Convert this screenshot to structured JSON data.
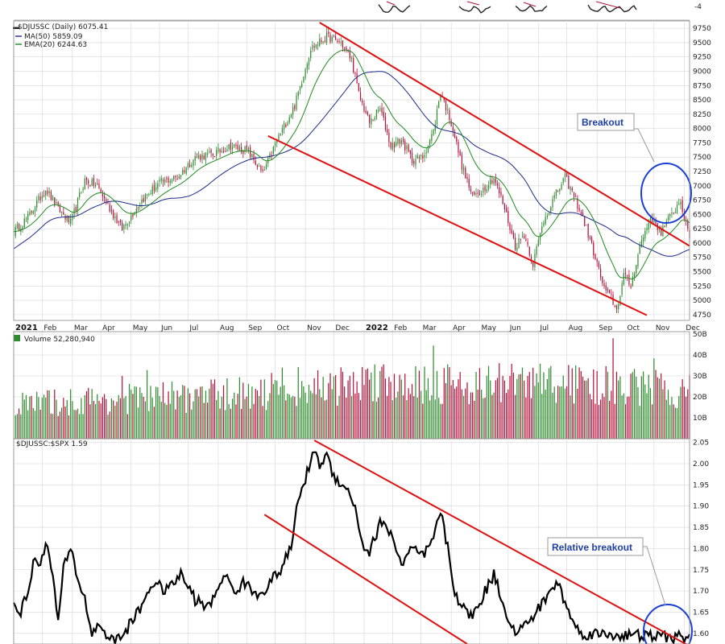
{
  "colors": {
    "up": "#2e8b2e",
    "down": "#b3123a",
    "ma50": "#1c2a8a",
    "ema20": "#1f8a1f",
    "channel": "#e01010",
    "circle": "#1a3fd6",
    "annotation_text": "#1f3fa8"
  },
  "chart_data": [
    {
      "type": "candlestick",
      "title": "$DJUSSC (Daily) 6075.41",
      "legend": [
        {
          "name": "MA(50) 5859.09",
          "color": "#1c2a8a"
        },
        {
          "name": "EMA(20) 6244.63",
          "color": "#1f8a1f"
        }
      ],
      "ylim": [
        4650,
        9850
      ],
      "y_ticks": [
        4750,
        5000,
        5250,
        5500,
        5750,
        6000,
        6250,
        6500,
        6750,
        7000,
        7250,
        7500,
        7750,
        8000,
        8250,
        8500,
        8750,
        9000,
        9250,
        9500,
        9750
      ],
      "x_labels": [
        "2021",
        "Feb",
        "Mar",
        "Apr",
        "May",
        "Jun",
        "Jul",
        "Aug",
        "Sep",
        "Oct",
        "Nov",
        "Dec",
        "2022",
        "Feb",
        "Mar",
        "Apr",
        "May",
        "Jun",
        "Jul",
        "Aug",
        "Sep",
        "Oct",
        "Nov",
        "Dec"
      ],
      "bold_labels": [
        "2021",
        "2022"
      ],
      "close_anchors": [
        [
          0,
          6200
        ],
        [
          8,
          6450
        ],
        [
          18,
          6950
        ],
        [
          25,
          6600
        ],
        [
          32,
          6350
        ],
        [
          40,
          7100
        ],
        [
          47,
          7000
        ],
        [
          55,
          6550
        ],
        [
          61,
          6250
        ],
        [
          72,
          6750
        ],
        [
          82,
          7050
        ],
        [
          92,
          7150
        ],
        [
          102,
          7500
        ],
        [
          112,
          7550
        ],
        [
          122,
          7700
        ],
        [
          132,
          7600
        ],
        [
          140,
          7200
        ],
        [
          148,
          7800
        ],
        [
          158,
          8400
        ],
        [
          167,
          9400
        ],
        [
          176,
          9600
        ],
        [
          184,
          9500
        ],
        [
          190,
          9200
        ],
        [
          194,
          8600
        ],
        [
          200,
          8100
        ],
        [
          206,
          8350
        ],
        [
          212,
          7700
        ],
        [
          218,
          7800
        ],
        [
          224,
          7450
        ],
        [
          230,
          7500
        ],
        [
          236,
          7950
        ],
        [
          240,
          8650
        ],
        [
          246,
          8100
        ],
        [
          252,
          7350
        ],
        [
          258,
          6800
        ],
        [
          264,
          6950
        ],
        [
          270,
          7150
        ],
        [
          276,
          6600
        ],
        [
          282,
          5950
        ],
        [
          287,
          6150
        ],
        [
          292,
          5650
        ],
        [
          298,
          6400
        ],
        [
          304,
          6800
        ],
        [
          310,
          7150
        ],
        [
          316,
          6750
        ],
        [
          321,
          6350
        ],
        [
          326,
          5850
        ],
        [
          332,
          5200
        ],
        [
          336,
          5050
        ],
        [
          339,
          4820
        ],
        [
          343,
          5450
        ],
        [
          347,
          5250
        ],
        [
          352,
          5950
        ],
        [
          358,
          6450
        ],
        [
          364,
          6200
        ],
        [
          370,
          6500
        ],
        [
          375,
          6750
        ],
        [
          378,
          6300
        ],
        [
          380,
          6100
        ]
      ],
      "annotation": {
        "text": "Breakout"
      }
    },
    {
      "type": "bar",
      "title": "Volume 52,280,940",
      "ylim": [
        0,
        50
      ],
      "y_ticks": [
        10,
        20,
        30,
        40,
        50
      ],
      "y_tick_labels": [
        "10B",
        "20B",
        "30B",
        "40B",
        "50B"
      ],
      "volume_anchors": [
        [
          0,
          18
        ],
        [
          60,
          21
        ],
        [
          110,
          23
        ],
        [
          140,
          24
        ],
        [
          150,
          28
        ],
        [
          180,
          27
        ],
        [
          200,
          31
        ],
        [
          260,
          29
        ],
        [
          300,
          30
        ],
        [
          330,
          28
        ],
        [
          352,
          27
        ],
        [
          380,
          25
        ]
      ]
    },
    {
      "type": "line",
      "title": "$DJUSSC:$SPX 1.59",
      "ylim": [
        1.575,
        2.055
      ],
      "y_ticks": [
        1.6,
        1.65,
        1.7,
        1.75,
        1.8,
        1.85,
        1.9,
        1.95,
        2.0,
        2.05
      ],
      "y_tick_labels": [
        "1.60",
        "1.65",
        "1.70",
        "1.75",
        "1.80",
        "1.85",
        "1.90",
        "1.95",
        "2.00",
        "2.05"
      ],
      "value_anchors": [
        [
          0,
          1.67
        ],
        [
          4,
          1.65
        ],
        [
          8,
          1.7
        ],
        [
          12,
          1.78
        ],
        [
          15,
          1.76
        ],
        [
          18,
          1.82
        ],
        [
          22,
          1.73
        ],
        [
          25,
          1.63
        ],
        [
          28,
          1.75
        ],
        [
          32,
          1.8
        ],
        [
          36,
          1.73
        ],
        [
          40,
          1.68
        ],
        [
          44,
          1.6
        ],
        [
          48,
          1.62
        ],
        [
          56,
          1.58
        ],
        [
          62,
          1.6
        ],
        [
          70,
          1.65
        ],
        [
          78,
          1.72
        ],
        [
          86,
          1.7
        ],
        [
          94,
          1.74
        ],
        [
          102,
          1.68
        ],
        [
          110,
          1.66
        ],
        [
          118,
          1.74
        ],
        [
          124,
          1.7
        ],
        [
          130,
          1.72
        ],
        [
          136,
          1.69
        ],
        [
          140,
          1.7
        ],
        [
          150,
          1.75
        ],
        [
          156,
          1.8
        ],
        [
          160,
          1.92
        ],
        [
          164,
          1.96
        ],
        [
          168,
          2.03
        ],
        [
          172,
          2.0
        ],
        [
          176,
          2.02
        ],
        [
          180,
          1.97
        ],
        [
          186,
          1.95
        ],
        [
          192,
          1.9
        ],
        [
          196,
          1.81
        ],
        [
          200,
          1.79
        ],
        [
          206,
          1.86
        ],
        [
          212,
          1.84
        ],
        [
          218,
          1.76
        ],
        [
          224,
          1.8
        ],
        [
          230,
          1.78
        ],
        [
          236,
          1.82
        ],
        [
          240,
          1.89
        ],
        [
          244,
          1.8
        ],
        [
          248,
          1.7
        ],
        [
          252,
          1.66
        ],
        [
          258,
          1.64
        ],
        [
          264,
          1.69
        ],
        [
          270,
          1.74
        ],
        [
          276,
          1.66
        ],
        [
          282,
          1.6
        ],
        [
          288,
          1.62
        ],
        [
          294,
          1.65
        ],
        [
          300,
          1.69
        ],
        [
          306,
          1.72
        ],
        [
          312,
          1.65
        ],
        [
          318,
          1.6
        ],
        [
          380,
          1.59
        ]
      ],
      "annotation": {
        "text": "Relative breakout"
      }
    }
  ]
}
